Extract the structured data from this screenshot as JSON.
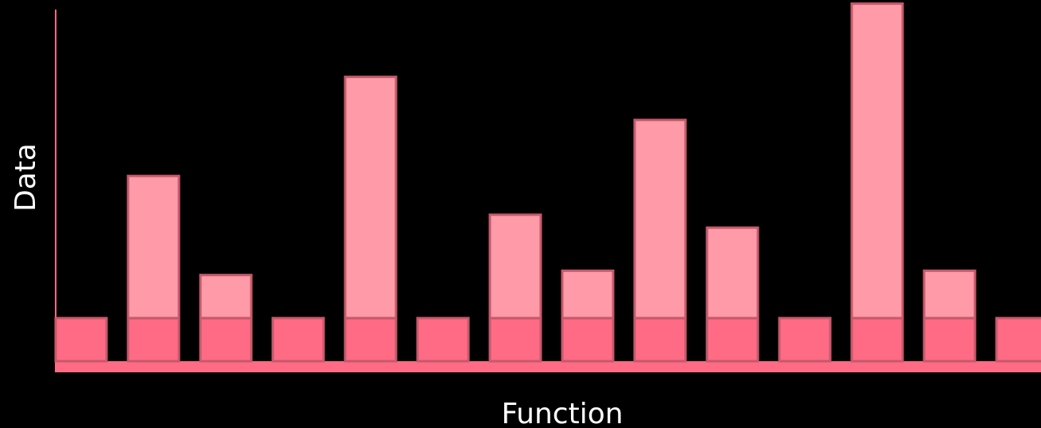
{
  "chart_data": {
    "type": "bar",
    "xlabel": "Function",
    "ylabel": "Data",
    "categories": [
      "",
      "",
      "",
      "",
      "",
      "",
      "",
      "",
      "",
      "",
      "",
      "",
      "",
      ""
    ],
    "series": [
      {
        "values": [
          1,
          1,
          1,
          1,
          1,
          1,
          1,
          1,
          1,
          1,
          1,
          1,
          1,
          1
        ]
      },
      {
        "values": [
          0,
          3.3,
          1.0,
          0,
          5.6,
          0,
          2.4,
          1.1,
          4.6,
          2.1,
          0,
          7.3,
          1.1,
          0
        ]
      }
    ],
    "stacked": true,
    "ylim": [
      0,
      8.2
    ],
    "grid": false,
    "colors": {
      "background": "#000000",
      "axis": "#ff6b84",
      "base_fill": "#ff6b84",
      "stack_fill": "#ff9aa8",
      "bar_stroke": "#c45a6c",
      "label": "#ffffff"
    }
  }
}
